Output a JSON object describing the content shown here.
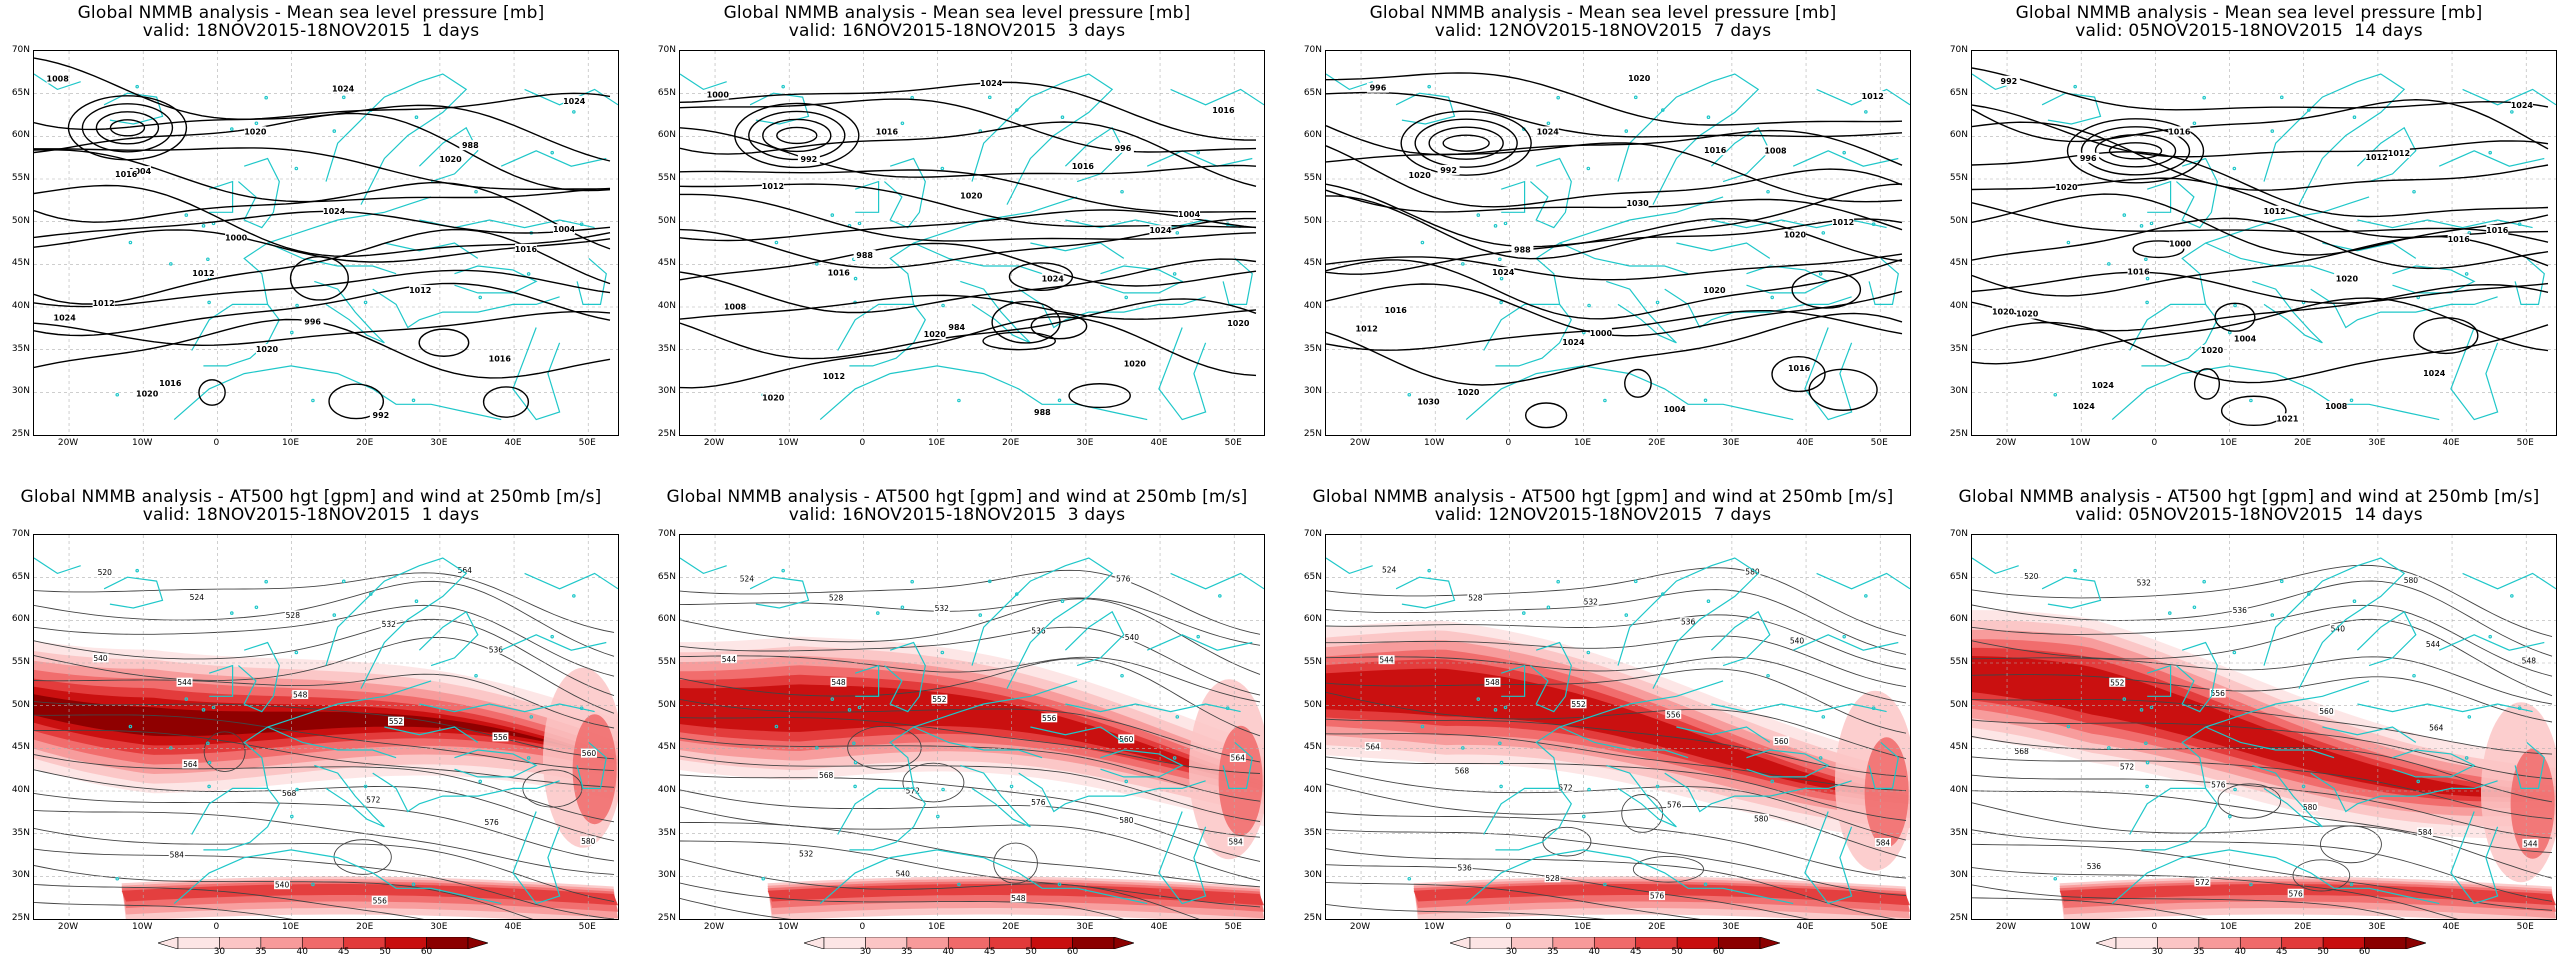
{
  "panels": [
    {
      "title": "Global NMMB analysis - Mean sea level pressure [mb]",
      "valid": "valid: 18NOV2015-18NOV2015  1 days",
      "kind": "mslp",
      "seed": 1
    },
    {
      "title": "Global NMMB analysis - Mean sea level pressure [mb]",
      "valid": "valid: 16NOV2015-18NOV2015  3 days",
      "kind": "mslp",
      "seed": 2
    },
    {
      "title": "Global NMMB analysis - Mean sea level pressure [mb]",
      "valid": "valid: 12NOV2015-18NOV2015  7 days",
      "kind": "mslp",
      "seed": 3
    },
    {
      "title": "Global NMMB analysis - Mean sea level pressure [mb]",
      "valid": "valid: 05NOV2015-18NOV2015  14 days",
      "kind": "mslp",
      "seed": 4
    },
    {
      "title": "Global NMMB analysis - AT500 hgt [gpm] and wind at 250mb [m/s]",
      "valid": "valid: 18NOV2015-18NOV2015  1 days",
      "kind": "z500",
      "seed": 1
    },
    {
      "title": "Global NMMB analysis - AT500 hgt [gpm] and wind at 250mb [m/s]",
      "valid": "valid: 16NOV2015-18NOV2015  3 days",
      "kind": "z500",
      "seed": 2
    },
    {
      "title": "Global NMMB analysis - AT500 hgt [gpm] and wind at 250mb [m/s]",
      "valid": "valid: 12NOV2015-18NOV2015  7 days",
      "kind": "z500",
      "seed": 3
    },
    {
      "title": "Global NMMB analysis - AT500 hgt [gpm] and wind at 250mb [m/s]",
      "valid": "valid: 05NOV2015-18NOV2015  14 days",
      "kind": "z500",
      "seed": 4
    }
  ],
  "lat_labels": [
    "70N",
    "65N",
    "60N",
    "55N",
    "50N",
    "45N",
    "40N",
    "35N",
    "30N",
    "25N"
  ],
  "lon_labels": [
    "20W",
    "10W",
    "0",
    "10E",
    "20E",
    "30E",
    "40E",
    "50E"
  ],
  "mslp_contour_labels": [
    [
      "1008",
      "1004",
      "1000",
      "996",
      "992",
      "988",
      "1004",
      "1012",
      "1016",
      "1020",
      "1024",
      "1012",
      "1016",
      "1024",
      "1016",
      "1012",
      "1020",
      "1024",
      "1020",
      "1016",
      "1024",
      "1020"
    ],
    [
      "1000",
      "992",
      "988",
      "984",
      "988",
      "996",
      "1004",
      "1008",
      "1012",
      "1016",
      "1020",
      "1024",
      "1020",
      "1016",
      "1012",
      "1016",
      "1020",
      "1024",
      "1016",
      "1024",
      "1020",
      "1020"
    ],
    [
      "996",
      "992",
      "988",
      "1000",
      "1004",
      "1008",
      "1012",
      "1016",
      "1020",
      "1024",
      "1030",
      "1020",
      "1016",
      "1012",
      "1020",
      "1024",
      "1024",
      "1020",
      "1016",
      "1020",
      "1012",
      "1030"
    ],
    [
      "992",
      "996",
      "1000",
      "1004",
      "1008",
      "1012",
      "1016",
      "1020",
      "1024",
      "1016",
      "1012",
      "1020",
      "1024",
      "1024",
      "1020",
      "1016",
      "1020",
      "1021",
      "1012",
      "1016",
      "1020",
      "1024"
    ]
  ],
  "z500_contour_labels": [
    [
      "520",
      "524",
      "528",
      "532",
      "536",
      "540",
      "544",
      "548",
      "552",
      "556",
      "560",
      "564",
      "568",
      "572",
      "576",
      "580",
      "584",
      "540",
      "556",
      "564"
    ],
    [
      "524",
      "528",
      "532",
      "536",
      "540",
      "544",
      "548",
      "552",
      "556",
      "560",
      "564",
      "568",
      "572",
      "576",
      "580",
      "584",
      "532",
      "540",
      "548",
      "576"
    ],
    [
      "524",
      "528",
      "532",
      "536",
      "540",
      "544",
      "548",
      "552",
      "556",
      "560",
      "564",
      "568",
      "572",
      "576",
      "580",
      "584",
      "536",
      "528",
      "576",
      "580"
    ],
    [
      "520",
      "532",
      "536",
      "540",
      "544",
      "548",
      "552",
      "556",
      "560",
      "564",
      "568",
      "572",
      "576",
      "580",
      "584",
      "544",
      "536",
      "572",
      "576",
      "580"
    ]
  ],
  "colorbar": {
    "labels": [
      "30",
      "35",
      "40",
      "45",
      "50",
      "60"
    ],
    "colors": [
      "#fde5e5",
      "#fbc5c5",
      "#f79a9a",
      "#f06a6a",
      "#e23a3a",
      "#c80e0e",
      "#8b0000"
    ]
  },
  "colors": {
    "coast": "#1fc7c9",
    "contour": "#000000",
    "thin_contour": "#444444",
    "grid": "#b0b0b0"
  }
}
